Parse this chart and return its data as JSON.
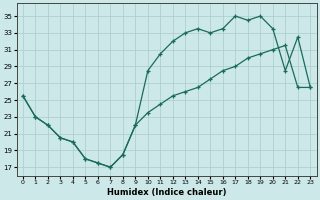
{
  "xlabel": "Humidex (Indice chaleur)",
  "bg_color": "#cce8e8",
  "grid_color": "#aacccc",
  "line_color": "#1a6b5a",
  "upper_x": [
    0,
    1,
    2,
    3,
    4,
    5,
    6,
    7,
    8,
    9,
    10,
    11,
    12,
    13,
    14,
    15,
    16,
    17,
    18,
    19,
    20,
    21,
    22,
    23
  ],
  "upper_y": [
    25.5,
    23.0,
    22.0,
    20.5,
    20.0,
    18.0,
    17.5,
    17.0,
    18.5,
    22.0,
    28.5,
    30.5,
    32.0,
    33.0,
    33.5,
    33.0,
    33.5,
    35.0,
    34.5,
    35.0,
    33.5,
    28.5,
    32.5,
    26.5
  ],
  "lower_x": [
    0,
    1,
    2,
    3,
    4,
    5,
    6,
    7,
    8,
    9,
    10,
    11,
    12,
    13,
    14,
    15,
    16,
    17,
    18,
    19,
    20,
    21,
    22,
    23
  ],
  "lower_y": [
    25.5,
    23.0,
    22.0,
    20.5,
    20.0,
    18.0,
    17.5,
    17.0,
    18.5,
    22.0,
    23.5,
    24.5,
    25.5,
    26.0,
    26.5,
    27.5,
    28.5,
    29.0,
    30.0,
    30.5,
    31.0,
    31.5,
    26.5,
    26.5
  ],
  "xlim": [
    -0.5,
    23.5
  ],
  "ylim": [
    16.0,
    36.5
  ],
  "yticks": [
    17,
    19,
    21,
    23,
    25,
    27,
    29,
    31,
    33,
    35
  ],
  "xticks": [
    0,
    1,
    2,
    3,
    4,
    5,
    6,
    7,
    8,
    9,
    10,
    11,
    12,
    13,
    14,
    15,
    16,
    17,
    18,
    19,
    20,
    21,
    22,
    23
  ],
  "figsize": [
    3.2,
    2.0
  ],
  "dpi": 100
}
